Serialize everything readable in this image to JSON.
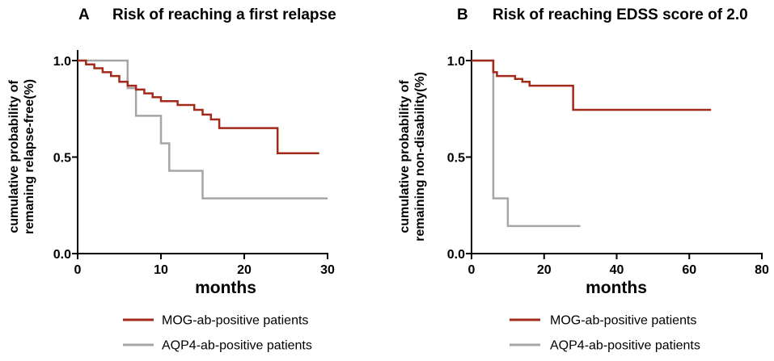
{
  "chart_data": [
    {
      "panel": "A",
      "type": "line",
      "title": "Risk of reaching a first relapse",
      "xlabel": "months",
      "ylabel": [
        "cumulative probability of",
        "remaning relapse-free(%)"
      ],
      "xlim": [
        0,
        30
      ],
      "ylim": [
        0,
        1.05
      ],
      "xticks": [
        0,
        10,
        20,
        30
      ],
      "xtick_labels": [
        "0",
        "10",
        "20",
        "30"
      ],
      "yticks": [
        0,
        0.5,
        1.0
      ],
      "ytick_labels": [
        "0.0",
        "0.5",
        "1.0"
      ],
      "grid": false,
      "step": true,
      "legend": "bottom",
      "series": [
        {
          "name": "MOG-ab-positive patients",
          "color": "#a12a1b",
          "x": [
            0,
            1,
            2,
            3,
            4,
            5,
            6,
            7,
            8,
            9,
            10,
            12,
            14,
            15,
            16,
            17,
            24,
            29
          ],
          "y": [
            1.0,
            0.98,
            0.96,
            0.94,
            0.92,
            0.89,
            0.87,
            0.85,
            0.83,
            0.81,
            0.79,
            0.77,
            0.745,
            0.72,
            0.695,
            0.65,
            0.52,
            0.52
          ]
        },
        {
          "name": "AQP4-ab-positive patients",
          "color": "#a6a6a6",
          "x": [
            0,
            6,
            7,
            10,
            11,
            15,
            30
          ],
          "y": [
            1.0,
            0.857,
            0.714,
            0.571,
            0.429,
            0.286,
            0.286
          ]
        }
      ]
    },
    {
      "panel": "B",
      "type": "line",
      "title": "Risk of reaching EDSS score of 2.0",
      "xlabel": "months",
      "ylabel": [
        "cumulative probability of",
        "remaining non-disability(%)"
      ],
      "xlim": [
        0,
        80
      ],
      "ylim": [
        0,
        1.05
      ],
      "xticks": [
        0,
        20,
        40,
        60,
        80
      ],
      "xtick_labels": [
        "0",
        "20",
        "40",
        "60",
        "80"
      ],
      "yticks": [
        0,
        0.5,
        1.0
      ],
      "ytick_labels": [
        "0.0",
        "0.5",
        "1.0"
      ],
      "grid": false,
      "step": true,
      "legend": "bottom",
      "series": [
        {
          "name": "MOG-ab-positive patients",
          "color": "#a12a1b",
          "x": [
            0,
            6,
            7,
            12,
            14,
            16,
            28,
            66
          ],
          "y": [
            1.0,
            0.94,
            0.92,
            0.905,
            0.89,
            0.87,
            0.745,
            0.745
          ]
        },
        {
          "name": "AQP4-ab-positive patients",
          "color": "#a6a6a6",
          "x": [
            0,
            6,
            10,
            30
          ],
          "y": [
            1.0,
            0.286,
            0.143,
            0.143
          ]
        }
      ]
    }
  ]
}
